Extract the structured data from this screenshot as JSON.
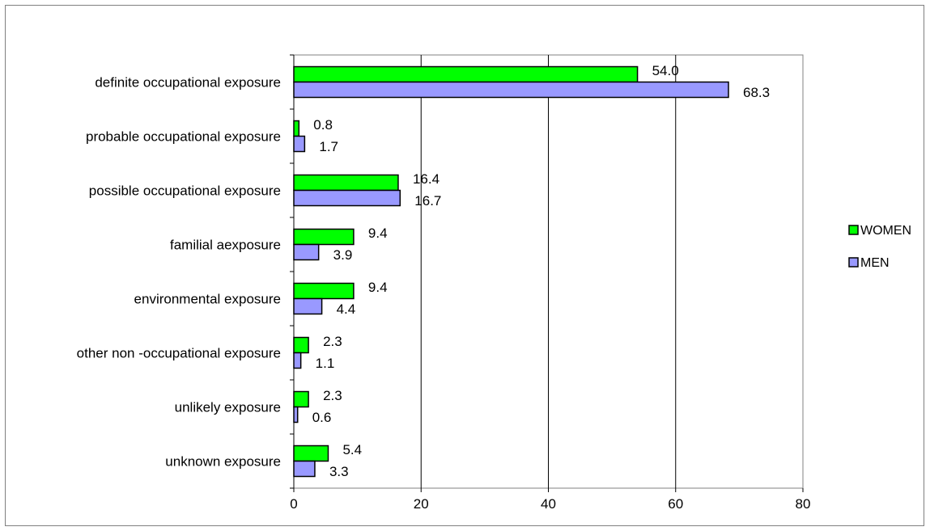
{
  "chart_data": {
    "type": "bar",
    "orientation": "horizontal",
    "categories": [
      "definite occupational exposure",
      "probable occupational exposure",
      "possible occupational exposure",
      "familial aexposure",
      "environmental exposure",
      "other non -occupational exposure",
      "unlikely exposure",
      "unknown exposure"
    ],
    "series": [
      {
        "name": "WOMEN",
        "color": "#00ff00",
        "values": [
          54.0,
          0.8,
          16.4,
          9.4,
          9.4,
          2.3,
          2.3,
          5.4
        ],
        "labels": [
          "54.0",
          "0.8",
          "16.4",
          "9.4",
          "9.4",
          "2.3",
          "2.3",
          "5.4"
        ]
      },
      {
        "name": "MEN",
        "color": "#9999ff",
        "values": [
          68.3,
          1.7,
          16.7,
          3.9,
          4.4,
          1.1,
          0.6,
          3.3
        ],
        "labels": [
          "68.3",
          "1.7",
          "16.7",
          "3.9",
          "4.4",
          "1.1",
          "0.6",
          "3.3"
        ]
      }
    ],
    "xlim": [
      0,
      80
    ],
    "x_ticks": [
      "0",
      "20",
      "40",
      "60",
      "80"
    ],
    "title": "",
    "xlabel": "",
    "ylabel": "",
    "grid": "vertical",
    "legend_position": "right"
  }
}
